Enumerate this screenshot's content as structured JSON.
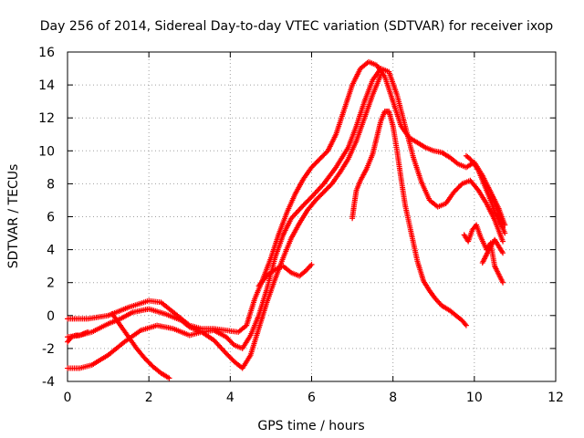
{
  "chart_data": {
    "type": "scatter",
    "title": "Day 256 of 2014, Sidereal Day-to-day VTEC variation (SDTVAR) for receiver ixop",
    "xlabel": "GPS time / hours",
    "ylabel": "SDTVAR / TECUs",
    "xlim": [
      0,
      12
    ],
    "ylim": [
      -4,
      16
    ],
    "x_ticks": [
      "0",
      "2",
      "4",
      "6",
      "8",
      "10",
      "12"
    ],
    "y_ticks": [
      "-4",
      "-2",
      "0",
      "2",
      "4",
      "6",
      "8",
      "10",
      "12",
      "14",
      "16"
    ],
    "grid": true,
    "marker": "+",
    "color": "#ff0000",
    "series": [
      {
        "name": "s1",
        "x": [
          0.0,
          0.5,
          1.0,
          1.5,
          2.0,
          2.3,
          2.5,
          2.8,
          3.0,
          3.3,
          3.6,
          3.9,
          4.2,
          4.4,
          4.5,
          4.6,
          4.8,
          5.0,
          5.2,
          5.4,
          5.6,
          5.8,
          6.0,
          6.2,
          6.4,
          6.6,
          6.8,
          7.0,
          7.2,
          7.4,
          7.6,
          7.8,
          8.0,
          8.2,
          8.4,
          8.6,
          8.8,
          9.0,
          9.2,
          9.4,
          9.6,
          9.8,
          10.0,
          10.2,
          10.4,
          10.6,
          10.75
        ],
        "y": [
          -0.2,
          -0.2,
          0.0,
          0.5,
          0.9,
          0.8,
          0.4,
          -0.2,
          -0.6,
          -0.8,
          -0.8,
          -0.9,
          -1.0,
          -0.6,
          0.2,
          1.0,
          2.2,
          3.5,
          5.0,
          6.3,
          7.4,
          8.3,
          9.0,
          9.5,
          10.0,
          11.0,
          12.5,
          14.0,
          15.0,
          15.4,
          15.2,
          14.5,
          13.0,
          11.5,
          10.8,
          10.5,
          10.2,
          10.0,
          9.9,
          9.6,
          9.2,
          9.0,
          9.3,
          8.5,
          7.5,
          6.5,
          5.5
        ]
      },
      {
        "name": "s2",
        "x": [
          0.0,
          0.3,
          0.6,
          1.0,
          1.3,
          1.6,
          2.0,
          2.4,
          2.8,
          3.0,
          3.3,
          3.6,
          3.9,
          4.1,
          4.3,
          4.5,
          4.7,
          4.9,
          5.1,
          5.3,
          5.5,
          5.8,
          6.0,
          6.3,
          6.6,
          6.9,
          7.1,
          7.3,
          7.5,
          7.7,
          7.9,
          8.1,
          8.3,
          8.5,
          8.7,
          8.9,
          9.1,
          9.3,
          9.5,
          9.7,
          9.9,
          10.1,
          10.3,
          10.5,
          10.7
        ],
        "y": [
          -1.3,
          -1.2,
          -1.0,
          -0.5,
          -0.2,
          0.2,
          0.4,
          0.1,
          -0.3,
          -0.7,
          -1.0,
          -0.9,
          -1.3,
          -1.8,
          -2.0,
          -1.2,
          0.0,
          1.6,
          3.5,
          4.9,
          5.9,
          6.7,
          7.2,
          8.0,
          9.0,
          10.2,
          11.5,
          13.0,
          14.3,
          15.0,
          14.8,
          13.4,
          11.5,
          9.6,
          8.1,
          7.0,
          6.6,
          6.8,
          7.5,
          8.0,
          8.2,
          7.6,
          6.8,
          5.8,
          4.5
        ]
      },
      {
        "name": "s3",
        "x": [
          0.0,
          0.3,
          0.6,
          1.0,
          1.4,
          1.8,
          2.2,
          2.6,
          3.0,
          3.3,
          3.6,
          3.9,
          4.1,
          4.3,
          4.5,
          4.7,
          4.9,
          5.1,
          5.3,
          5.5,
          5.7,
          5.9,
          6.1,
          6.3,
          6.5,
          6.7,
          6.9,
          7.1,
          7.3,
          7.5,
          7.7
        ],
        "y": [
          -3.2,
          -3.2,
          -3.0,
          -2.4,
          -1.6,
          -0.9,
          -0.6,
          -0.8,
          -1.2,
          -1.0,
          -1.5,
          -2.3,
          -2.8,
          -3.2,
          -2.4,
          -0.8,
          0.8,
          2.2,
          3.5,
          4.7,
          5.6,
          6.4,
          7.0,
          7.5,
          8.0,
          8.7,
          9.5,
          10.6,
          12.0,
          13.4,
          14.6
        ]
      },
      {
        "name": "s4",
        "x": [
          0.0,
          0.1,
          0.2,
          0.3,
          0.4,
          0.5
        ],
        "y": [
          -1.6,
          -1.3,
          -1.2,
          -1.2,
          -1.1,
          -1.0
        ]
      },
      {
        "name": "s5",
        "x": [
          1.1,
          1.3,
          1.5,
          1.7,
          1.9,
          2.1,
          2.3,
          2.5
        ],
        "y": [
          0.1,
          -0.6,
          -1.3,
          -2.0,
          -2.6,
          -3.1,
          -3.5,
          -3.8
        ]
      },
      {
        "name": "s6",
        "x": [
          4.7,
          4.9,
          5.1,
          5.3,
          5.5,
          5.7,
          5.85,
          6.0
        ],
        "y": [
          1.8,
          2.4,
          2.8,
          3.0,
          2.6,
          2.4,
          2.7,
          3.1
        ]
      },
      {
        "name": "s7",
        "x": [
          7.0,
          7.05,
          7.1,
          7.2,
          7.35,
          7.5,
          7.6,
          7.7,
          7.8,
          7.9,
          8.0,
          8.1,
          8.2,
          8.3,
          8.45,
          8.6,
          8.75,
          8.9,
          9.05,
          9.2,
          9.4,
          9.55,
          9.7,
          9.8
        ],
        "y": [
          5.9,
          6.8,
          7.6,
          8.2,
          8.9,
          9.8,
          10.8,
          11.8,
          12.4,
          12.4,
          11.5,
          10.0,
          8.3,
          6.7,
          5.0,
          3.3,
          2.1,
          1.5,
          1.0,
          0.6,
          0.3,
          0.0,
          -0.3,
          -0.6
        ]
      },
      {
        "name": "s8",
        "x": [
          9.8,
          9.9,
          10.0,
          10.1,
          10.2,
          10.3,
          10.4,
          10.5,
          10.6,
          10.7,
          10.75
        ],
        "y": [
          9.7,
          9.5,
          9.2,
          8.8,
          8.2,
          7.6,
          7.0,
          6.3,
          5.8,
          5.3,
          5.0
        ]
      },
      {
        "name": "s9",
        "x": [
          9.75,
          9.85,
          9.95,
          10.05,
          10.15,
          10.3,
          10.4,
          10.5,
          10.6,
          10.7
        ],
        "y": [
          4.9,
          4.5,
          5.2,
          5.5,
          4.8,
          4.0,
          4.4,
          3.0,
          2.5,
          2.0
        ]
      },
      {
        "name": "s10",
        "x": [
          10.2,
          10.3,
          10.4,
          10.5,
          10.6,
          10.7
        ],
        "y": [
          3.2,
          3.7,
          4.2,
          4.6,
          4.2,
          3.8
        ]
      },
      {
        "name": "s11",
        "x": [
          10.4,
          10.5,
          10.6,
          10.7
        ],
        "y": [
          7.5,
          6.8,
          6.2,
          5.5
        ]
      }
    ]
  }
}
